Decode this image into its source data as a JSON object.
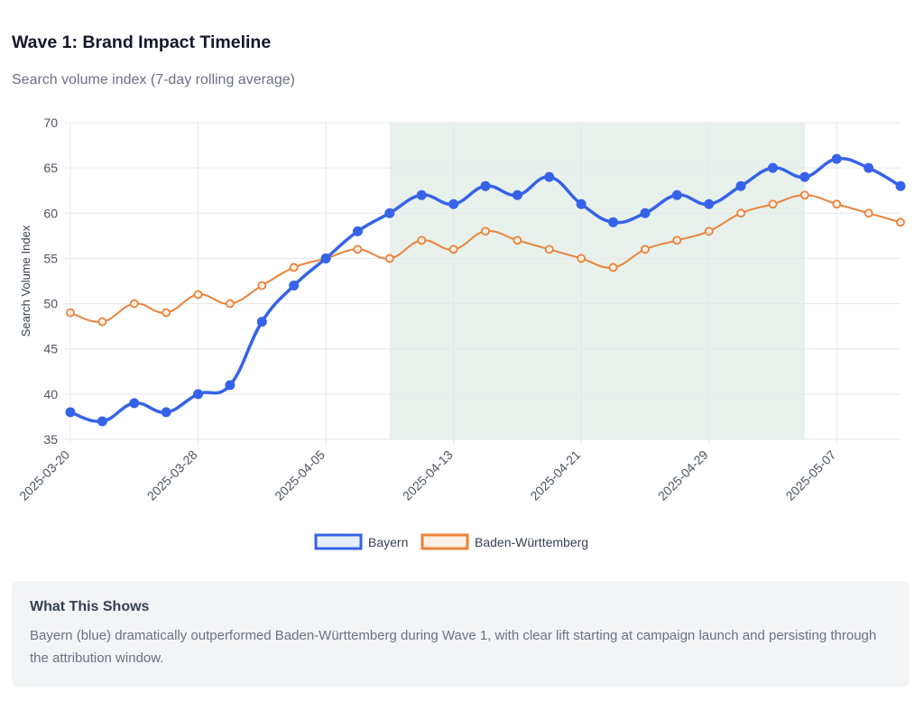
{
  "header": {
    "title": "Wave 1: Brand Impact Timeline",
    "subtitle": "Search volume index (7-day rolling average)"
  },
  "info_box": {
    "heading": "What This Shows",
    "text": "Bayern (blue) dramatically outperformed Baden-Württemberg during Wave 1, with clear lift starting at campaign launch and persisting through the attribution window."
  },
  "chart_data": {
    "type": "line",
    "title": "",
    "xlabel": "",
    "ylabel": "Search Volume Index",
    "ylim": [
      35,
      70
    ],
    "yticks": [
      35,
      40,
      45,
      50,
      55,
      60,
      65,
      70
    ],
    "grid": true,
    "legend_position": "bottom",
    "x": [
      "2025-03-20",
      "2025-03-22",
      "2025-03-24",
      "2025-03-26",
      "2025-03-28",
      "2025-03-30",
      "2025-04-01",
      "2025-04-03",
      "2025-04-05",
      "2025-04-07",
      "2025-04-09",
      "2025-04-11",
      "2025-04-13",
      "2025-04-15",
      "2025-04-17",
      "2025-04-19",
      "2025-04-21",
      "2025-04-23",
      "2025-04-25",
      "2025-04-27",
      "2025-04-29",
      "2025-05-01",
      "2025-05-03",
      "2025-05-05",
      "2025-05-07",
      "2025-05-09",
      "2025-05-11"
    ],
    "xtick_labels": [
      "2025-03-20",
      "2025-03-28",
      "2025-04-05",
      "2025-04-13",
      "2025-04-21",
      "2025-04-29",
      "2025-05-07"
    ],
    "shaded_region": {
      "from": "2025-04-09",
      "to": "2025-05-05",
      "color": "#e8f1ec"
    },
    "series": [
      {
        "name": "Bayern",
        "color": "#3563e9",
        "fill": "#e8eefc",
        "values": [
          38,
          37,
          39,
          38,
          40,
          41,
          48,
          52,
          55,
          58,
          60,
          62,
          61,
          63,
          62,
          64,
          61,
          59,
          60,
          62,
          61,
          63,
          65,
          64,
          66,
          65,
          63
        ]
      },
      {
        "name": "Baden-Württemberg",
        "color": "#ea8238",
        "fill": "#fdf0e6",
        "values": [
          49,
          48,
          50,
          49,
          51,
          50,
          52,
          54,
          55,
          56,
          55,
          57,
          56,
          58,
          57,
          56,
          55,
          54,
          56,
          57,
          58,
          60,
          61,
          62,
          61,
          60,
          59
        ]
      }
    ]
  }
}
